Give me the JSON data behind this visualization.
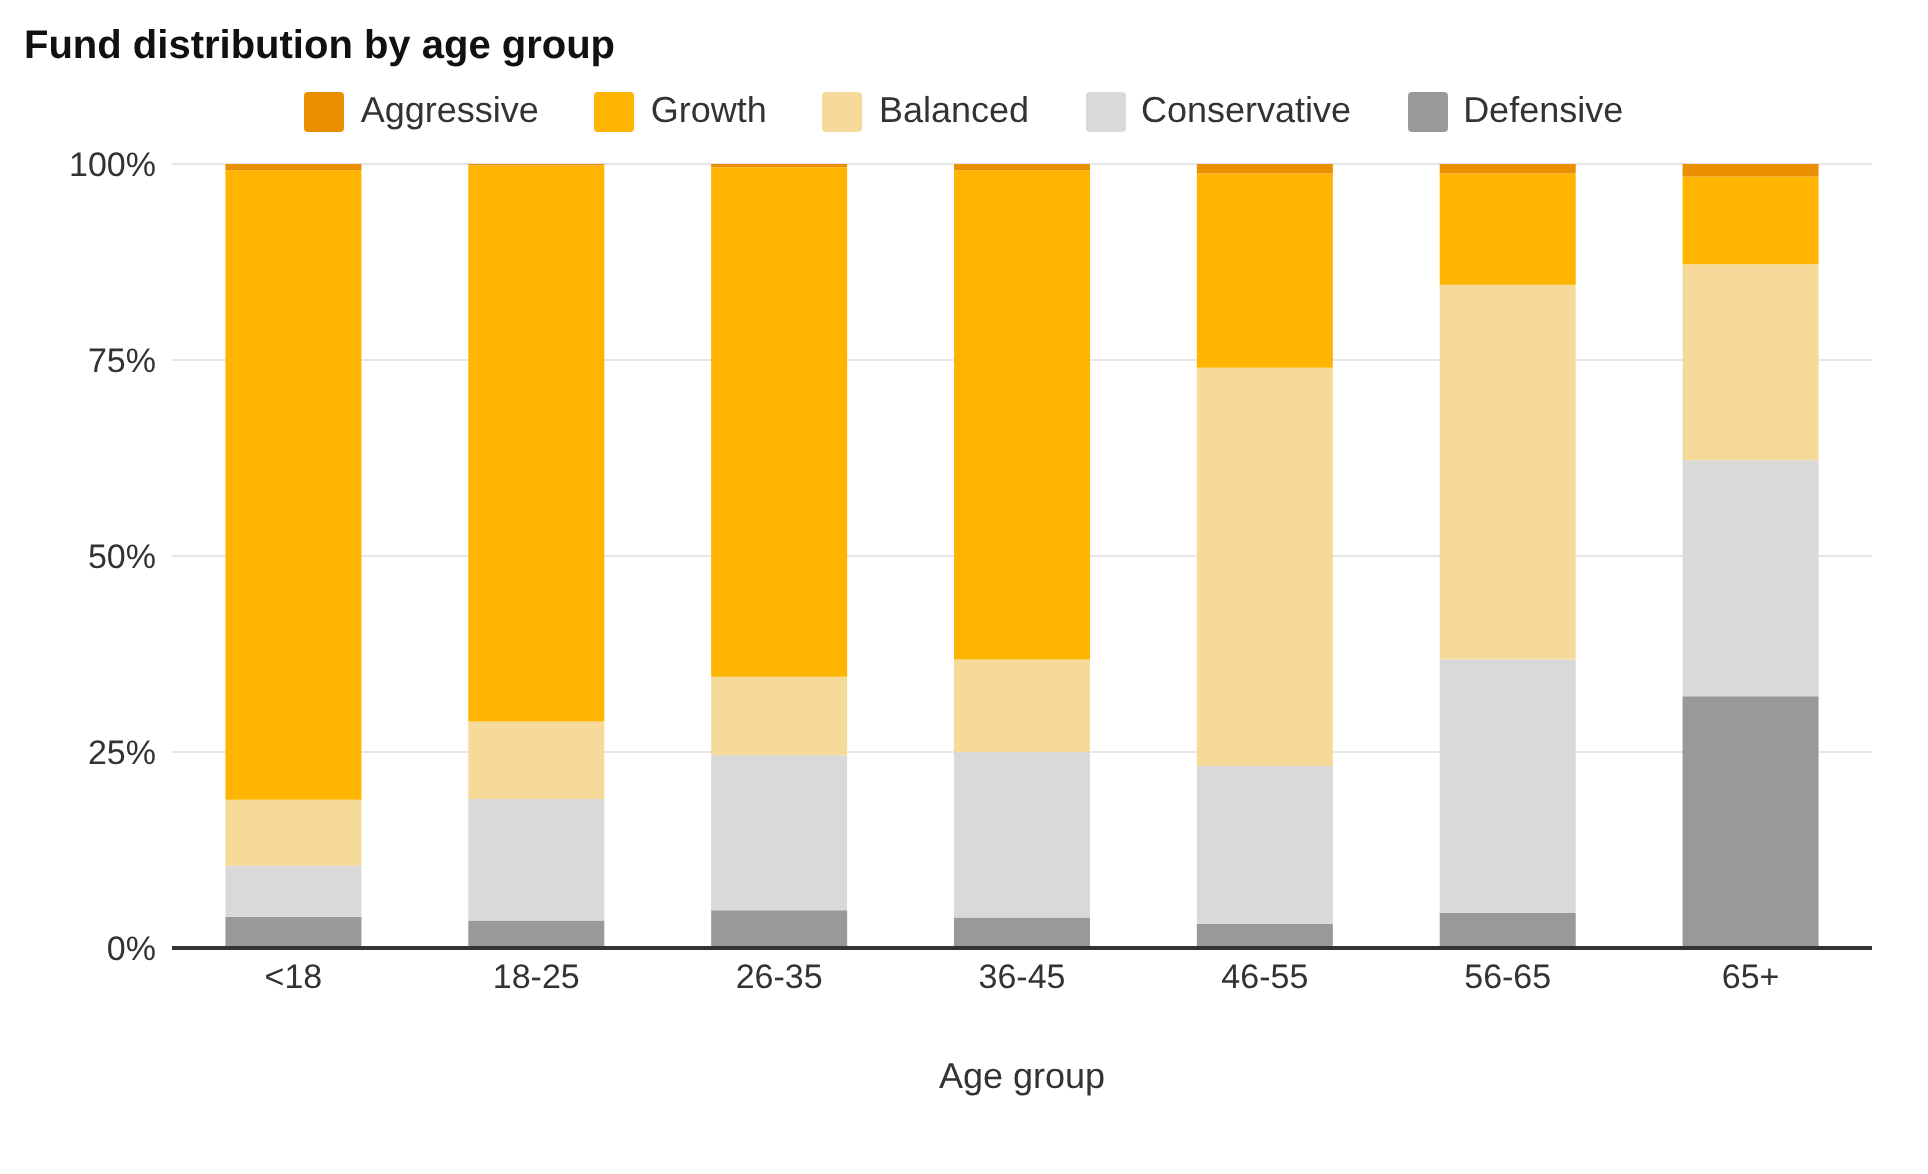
{
  "chart_data": {
    "type": "bar",
    "title": "Fund distribution by age group",
    "xlabel": "Age group",
    "categories": [
      "<18",
      "18-25",
      "26-35",
      "36-45",
      "46-55",
      "56-65",
      "65+"
    ],
    "stacked": true,
    "series": [
      {
        "name": "Defensive",
        "color": "#999999",
        "values": [
          4.0,
          3.5,
          4.8,
          3.9,
          3.1,
          4.5,
          32.1
        ]
      },
      {
        "name": "Conservative",
        "color": "#d9d9d9",
        "values": [
          6.5,
          15.5,
          19.8,
          21.1,
          20.1,
          32.3,
          30.1
        ]
      },
      {
        "name": "Balanced",
        "color": "#f5da99",
        "values": [
          8.4,
          9.9,
          10.0,
          11.8,
          50.8,
          47.8,
          25.0
        ]
      },
      {
        "name": "Growth",
        "color": "#ffb400",
        "values": [
          80.3,
          70.9,
          65.0,
          62.4,
          24.8,
          14.2,
          11.2
        ]
      },
      {
        "name": "Aggressive",
        "color": "#ea8f00",
        "values": [
          0.8,
          0.2,
          0.4,
          0.8,
          1.2,
          1.2,
          1.6
        ]
      }
    ],
    "ylim": [
      0,
      100
    ],
    "yticks": [
      {
        "value": 0,
        "label": "0%"
      },
      {
        "value": 25,
        "label": "25%"
      },
      {
        "value": 50,
        "label": "50%"
      },
      {
        "value": 75,
        "label": "75%"
      },
      {
        "value": 100,
        "label": "100%"
      }
    ],
    "grid": "y",
    "legend": "top"
  }
}
